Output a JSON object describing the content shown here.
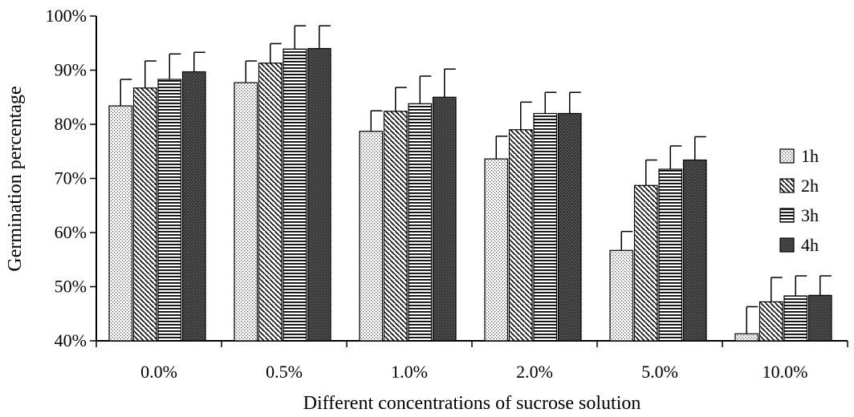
{
  "chart_data": {
    "type": "bar",
    "xlabel": "Different concentrations of sucrose solution",
    "ylabel": "Germination percentage",
    "categories": [
      "0.0%",
      "0.5%",
      "1.0%",
      "2.0%",
      "5.0%",
      "10.0%"
    ],
    "ylim": [
      40,
      100
    ],
    "yticks": [
      "40%",
      "50%",
      "60%",
      "70%",
      "80%",
      "90%",
      "100%"
    ],
    "ytick_values": [
      40,
      50,
      60,
      70,
      80,
      90,
      100
    ],
    "grid": false,
    "legend_position": "right",
    "series": [
      {
        "name": "1h",
        "pattern": "dots",
        "values": [
          83.4,
          87.7,
          78.7,
          73.6,
          56.7,
          41.3
        ],
        "errors": [
          4.9,
          4.0,
          3.8,
          4.2,
          3.5,
          5.0
        ]
      },
      {
        "name": "2h",
        "pattern": "diagonal",
        "values": [
          86.7,
          91.3,
          82.4,
          79.0,
          68.7,
          47.2
        ],
        "errors": [
          5.0,
          3.6,
          4.4,
          5.1,
          4.7,
          4.5
        ]
      },
      {
        "name": "3h",
        "pattern": "horizontal",
        "values": [
          88.3,
          93.9,
          83.8,
          82.0,
          71.7,
          48.3
        ],
        "errors": [
          4.7,
          4.3,
          5.1,
          3.9,
          4.3,
          3.7
        ]
      },
      {
        "name": "4h",
        "pattern": "solid-dark",
        "values": [
          89.7,
          94.0,
          85.0,
          82.0,
          73.4,
          48.4
        ],
        "errors": [
          3.6,
          4.2,
          5.2,
          3.9,
          4.3,
          3.6
        ]
      }
    ]
  }
}
